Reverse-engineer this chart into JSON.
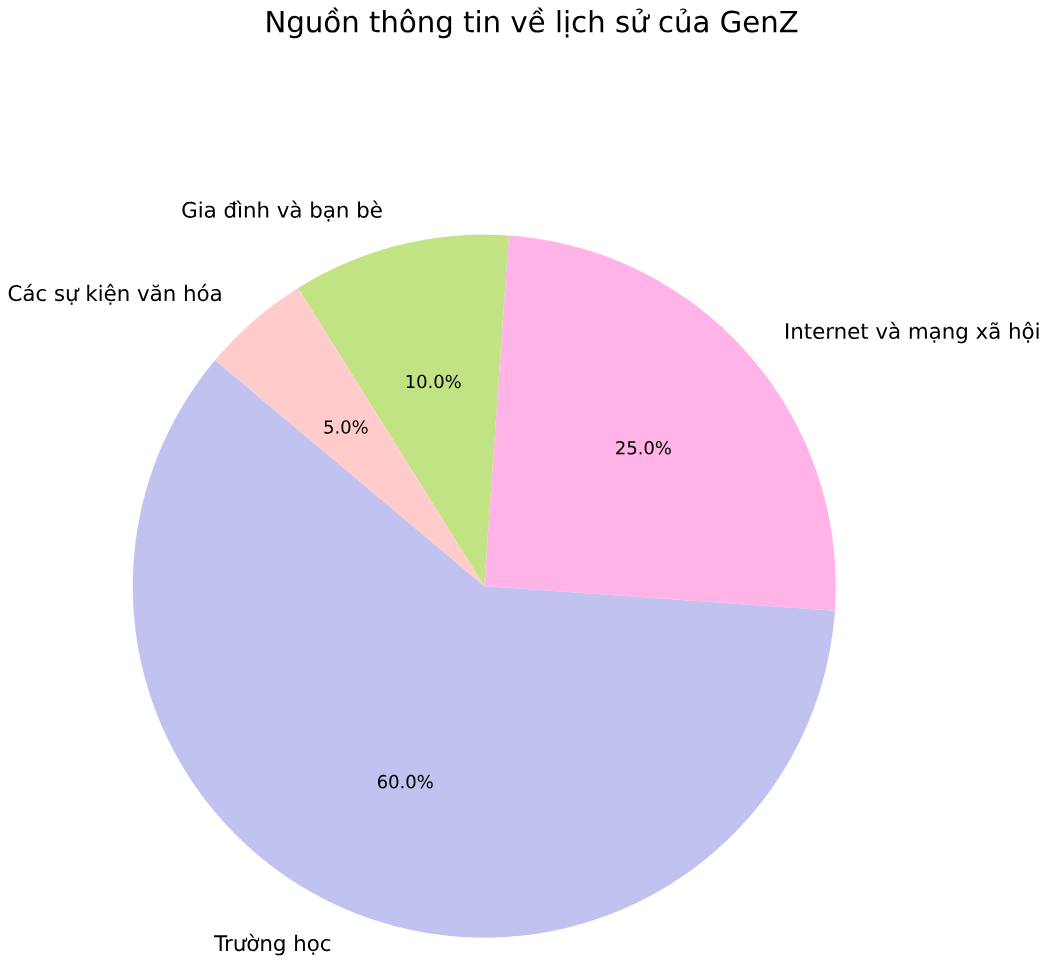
{
  "chart_data": {
    "type": "pie",
    "title": "Nguồn thông tin về lịch sử của GenZ",
    "categories": [
      "Internet và mạng xã hội",
      "Gia đình và bạn bè",
      "Các sự kiện văn hóa",
      "Trường học"
    ],
    "values": [
      25,
      10,
      5,
      60
    ],
    "value_labels": [
      "25.0%",
      "10.0%",
      "5.0%",
      "60.0%"
    ],
    "colors": [
      "#ffb3e6",
      "#c2e384",
      "#ffcccb",
      "#c2c2f0"
    ]
  }
}
